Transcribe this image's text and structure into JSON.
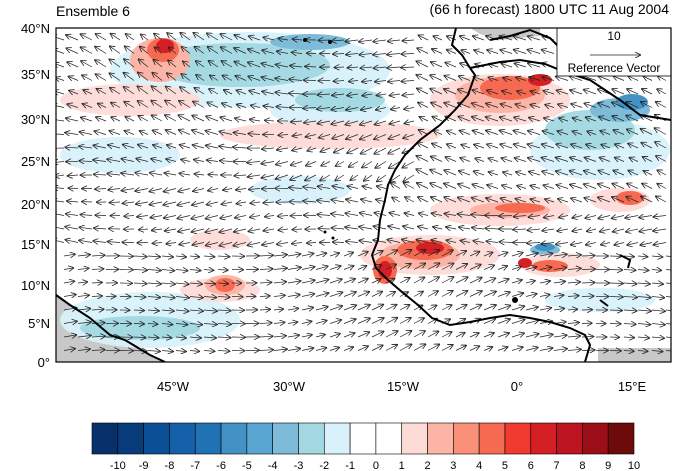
{
  "header": {
    "ensemble_label": "Ensemble 6",
    "forecast_label": "(66 h forecast) 1800 UTC 11 Aug 2004"
  },
  "reference_vector": {
    "value": "10",
    "label": "Reference Vector"
  },
  "axes": {
    "lat_ticks": [
      "40°N",
      "35°N",
      "30°N",
      "25°N",
      "20°N",
      "15°N",
      "10°N",
      "5°N",
      "0°"
    ],
    "lon_ticks": [
      "45°W",
      "30°W",
      "15°W",
      "0°",
      "15°E"
    ]
  },
  "colorbar": {
    "labels": [
      "-10",
      "-9",
      "-8",
      "-7",
      "-6",
      "-5",
      "-4",
      "-3",
      "-2",
      "-1",
      "0",
      "1",
      "2",
      "3",
      "4",
      "5",
      "6",
      "7",
      "8",
      "9",
      "10"
    ],
    "colors": [
      "#08306b",
      "#083b7a",
      "#0b4f96",
      "#1561a9",
      "#2171b5",
      "#4292c6",
      "#5aa6d2",
      "#7dbbd9",
      "#a3d8e2",
      "#d8f1fa",
      "#ffffff",
      "#ffffff",
      "#fddbd7",
      "#fbb4a5",
      "#fa9077",
      "#f66a52",
      "#ee3a2f",
      "#d41f24",
      "#bd1520",
      "#9b0d17",
      "#6d0a0a"
    ]
  },
  "colors": {
    "land_gray": "#c8c8c8",
    "coastline": "#000000",
    "vector": "#222222"
  }
}
